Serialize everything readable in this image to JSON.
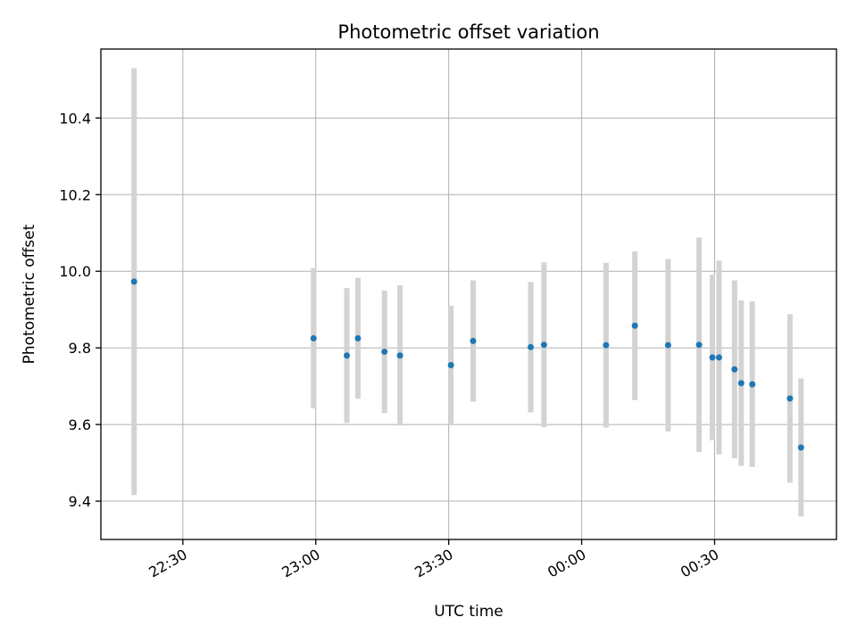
{
  "chart_data": {
    "type": "scatter",
    "title": "Photometric offset variation",
    "xlabel": "UTC time",
    "ylabel": "Photometric offset",
    "x_ticks": [
      {
        "t": "22:30",
        "label": "22:30"
      },
      {
        "t": "23:00",
        "label": "23:00"
      },
      {
        "t": "23:30",
        "label": "23:30"
      },
      {
        "t": "24:00",
        "label": "00:00"
      },
      {
        "t": "24:30",
        "label": "00:30"
      }
    ],
    "y_ticks": [
      9.4,
      9.6,
      9.8,
      10.0,
      10.2,
      10.4
    ],
    "xlim": [
      "22:11:30",
      "24:57:30"
    ],
    "ylim": [
      9.3,
      10.58
    ],
    "grid": true,
    "colors": {
      "point": "#1f77b4",
      "errorbar": "#d3d3d3",
      "grid": "#b0b0b0",
      "axis": "#000000"
    },
    "series": [
      {
        "points": [
          {
            "t": "22:19:00",
            "y": 9.973,
            "err": 0.557
          },
          {
            "t": "22:59:30",
            "y": 9.825,
            "err": 0.183
          },
          {
            "t": "23:07:00",
            "y": 9.78,
            "err": 0.176
          },
          {
            "t": "23:09:30",
            "y": 9.825,
            "err": 0.158
          },
          {
            "t": "23:15:30",
            "y": 9.79,
            "err": 0.16
          },
          {
            "t": "23:19:00",
            "y": 9.78,
            "err": 0.183
          },
          {
            "t": "23:30:30",
            "y": 9.755,
            "err": 0.155
          },
          {
            "t": "23:35:30",
            "y": 9.818,
            "err": 0.158
          },
          {
            "t": "23:48:30",
            "y": 9.802,
            "err": 0.17
          },
          {
            "t": "23:51:30",
            "y": 9.808,
            "err": 0.215
          },
          {
            "t": "24:05:30",
            "y": 9.807,
            "err": 0.215
          },
          {
            "t": "24:12:00",
            "y": 9.858,
            "err": 0.194
          },
          {
            "t": "24:19:30",
            "y": 9.807,
            "err": 0.225
          },
          {
            "t": "24:26:30",
            "y": 9.808,
            "err": 0.28
          },
          {
            "t": "24:29:30",
            "y": 9.775,
            "err": 0.216
          },
          {
            "t": "24:31:00",
            "y": 9.775,
            "err": 0.253
          },
          {
            "t": "24:34:30",
            "y": 9.744,
            "err": 0.232
          },
          {
            "t": "24:36:00",
            "y": 9.708,
            "err": 0.216
          },
          {
            "t": "24:38:30",
            "y": 9.705,
            "err": 0.216
          },
          {
            "t": "24:47:00",
            "y": 9.668,
            "err": 0.22
          },
          {
            "t": "24:49:30",
            "y": 9.54,
            "err": 0.18
          }
        ]
      }
    ]
  }
}
